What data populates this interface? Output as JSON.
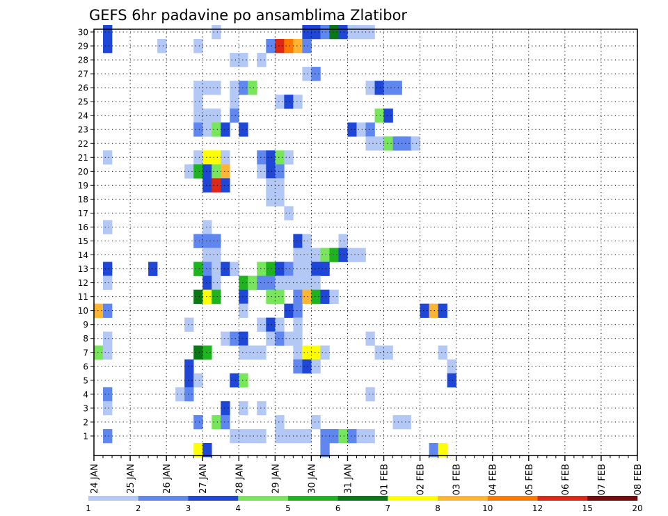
{
  "chart_data": {
    "type": "heatmap",
    "title": "GEFS 6hr padavine po ansamblima Zlatibor",
    "xlabel": "",
    "ylabel": "",
    "x_ticks": [
      "24 JAN",
      "25 JAN",
      "26 JAN",
      "27 JAN",
      "28 JAN",
      "29 JAN",
      "30 JAN",
      "31 JAN",
      "01 FEB",
      "02 FEB",
      "03 FEB",
      "04 FEB",
      "05 FEB",
      "06 FEB",
      "07 FEB",
      "08 FEB"
    ],
    "y_ticks": [
      1,
      2,
      3,
      4,
      5,
      6,
      7,
      8,
      9,
      10,
      11,
      12,
      13,
      14,
      15,
      16,
      17,
      18,
      19,
      20,
      21,
      22,
      23,
      24,
      25,
      26,
      27,
      28,
      29,
      30
    ],
    "xlim": [
      "24 JAN",
      "08 FEB"
    ],
    "ylim": [
      0,
      30
    ],
    "grid": true,
    "colorbar": {
      "labels": [
        "1",
        "2",
        "3",
        "4",
        "5",
        "6",
        "7",
        "8",
        "10",
        "12",
        "15",
        "20"
      ],
      "colors": [
        "#b4c8f5",
        "#5f87ef",
        "#1e46d7",
        "#78e65a",
        "#1eb41e",
        "#0a7814",
        "#ffff00",
        "#ffb432",
        "#ff7800",
        "#dc2814",
        "#780a0a"
      ]
    },
    "cells_note": "each cell = [member, time step index (6-hourly from 24 JAN 00Z), category index into colorbar.colors]",
    "cells": [
      [
        30,
        1,
        2
      ],
      [
        30,
        13,
        0
      ],
      [
        30,
        23,
        2
      ],
      [
        30,
        24,
        2
      ],
      [
        30,
        25,
        1
      ],
      [
        30,
        26,
        5
      ],
      [
        30,
        27,
        2
      ],
      [
        30,
        28,
        0
      ],
      [
        30,
        29,
        0
      ],
      [
        30,
        30,
        0
      ],
      [
        29,
        1,
        2
      ],
      [
        29,
        11,
        0
      ],
      [
        29,
        7,
        0
      ],
      [
        29,
        19,
        1
      ],
      [
        29,
        20,
        9
      ],
      [
        29,
        21,
        8
      ],
      [
        29,
        22,
        7
      ],
      [
        29,
        23,
        1
      ],
      [
        28,
        15,
        0
      ],
      [
        28,
        16,
        0
      ],
      [
        28,
        18,
        0
      ],
      [
        27,
        23,
        0
      ],
      [
        27,
        24,
        1
      ],
      [
        26,
        11,
        0
      ],
      [
        26,
        12,
        0
      ],
      [
        26,
        13,
        0
      ],
      [
        26,
        15,
        0
      ],
      [
        26,
        16,
        1
      ],
      [
        26,
        17,
        3
      ],
      [
        26,
        30,
        0
      ],
      [
        26,
        31,
        2
      ],
      [
        26,
        32,
        1
      ],
      [
        26,
        33,
        1
      ],
      [
        25,
        11,
        0
      ],
      [
        25,
        15,
        0
      ],
      [
        25,
        20,
        0
      ],
      [
        25,
        21,
        2
      ],
      [
        25,
        22,
        0
      ],
      [
        24,
        11,
        0
      ],
      [
        24,
        12,
        0
      ],
      [
        24,
        13,
        0
      ],
      [
        24,
        15,
        1
      ],
      [
        24,
        31,
        3
      ],
      [
        24,
        32,
        2
      ],
      [
        23,
        11,
        1
      ],
      [
        23,
        12,
        0
      ],
      [
        23,
        13,
        3
      ],
      [
        23,
        14,
        2
      ],
      [
        23,
        16,
        2
      ],
      [
        23,
        28,
        2
      ],
      [
        23,
        29,
        0
      ],
      [
        23,
        30,
        1
      ],
      [
        22,
        30,
        0
      ],
      [
        22,
        31,
        0
      ],
      [
        22,
        32,
        3
      ],
      [
        22,
        33,
        1
      ],
      [
        22,
        34,
        1
      ],
      [
        22,
        35,
        0
      ],
      [
        21,
        1,
        0
      ],
      [
        21,
        11,
        0
      ],
      [
        21,
        12,
        6
      ],
      [
        21,
        13,
        6
      ],
      [
        21,
        14,
        0
      ],
      [
        21,
        18,
        1
      ],
      [
        21,
        19,
        2
      ],
      [
        21,
        20,
        3
      ],
      [
        21,
        21,
        0
      ],
      [
        20,
        10,
        0
      ],
      [
        20,
        11,
        4
      ],
      [
        20,
        12,
        2
      ],
      [
        20,
        13,
        3
      ],
      [
        20,
        14,
        7
      ],
      [
        20,
        18,
        0
      ],
      [
        20,
        19,
        2
      ],
      [
        20,
        20,
        1
      ],
      [
        19,
        12,
        2
      ],
      [
        19,
        13,
        9
      ],
      [
        19,
        14,
        2
      ],
      [
        19,
        19,
        0
      ],
      [
        19,
        20,
        0
      ],
      [
        18,
        19,
        0
      ],
      [
        18,
        20,
        0
      ],
      [
        17,
        21,
        0
      ],
      [
        16,
        1,
        0
      ],
      [
        16,
        12,
        0
      ],
      [
        15,
        11,
        1
      ],
      [
        15,
        12,
        1
      ],
      [
        15,
        13,
        1
      ],
      [
        15,
        22,
        2
      ],
      [
        15,
        23,
        0
      ],
      [
        15,
        27,
        0
      ],
      [
        14,
        12,
        0
      ],
      [
        14,
        13,
        0
      ],
      [
        14,
        22,
        0
      ],
      [
        14,
        23,
        0
      ],
      [
        14,
        24,
        0
      ],
      [
        14,
        25,
        3
      ],
      [
        14,
        26,
        4
      ],
      [
        14,
        27,
        2
      ],
      [
        14,
        28,
        0
      ],
      [
        14,
        29,
        0
      ],
      [
        13,
        1,
        2
      ],
      [
        13,
        6,
        2
      ],
      [
        13,
        11,
        4
      ],
      [
        13,
        12,
        1
      ],
      [
        13,
        13,
        0
      ],
      [
        13,
        14,
        2
      ],
      [
        13,
        15,
        0
      ],
      [
        13,
        18,
        3
      ],
      [
        13,
        19,
        4
      ],
      [
        13,
        20,
        2
      ],
      [
        13,
        21,
        1
      ],
      [
        13,
        22,
        0
      ],
      [
        13,
        23,
        0
      ],
      [
        13,
        24,
        2
      ],
      [
        13,
        25,
        2
      ],
      [
        12,
        1,
        0
      ],
      [
        12,
        12,
        2
      ],
      [
        12,
        13,
        0
      ],
      [
        12,
        16,
        4
      ],
      [
        12,
        17,
        3
      ],
      [
        12,
        18,
        1
      ],
      [
        12,
        19,
        1
      ],
      [
        12,
        20,
        0
      ],
      [
        12,
        21,
        0
      ],
      [
        12,
        22,
        0
      ],
      [
        12,
        23,
        0
      ],
      [
        12,
        24,
        0
      ],
      [
        11,
        11,
        5
      ],
      [
        11,
        12,
        6
      ],
      [
        11,
        13,
        4
      ],
      [
        11,
        16,
        2
      ],
      [
        11,
        19,
        3
      ],
      [
        11,
        20,
        3
      ],
      [
        11,
        22,
        1
      ],
      [
        11,
        23,
        7
      ],
      [
        11,
        24,
        4
      ],
      [
        11,
        25,
        2
      ],
      [
        11,
        26,
        0
      ],
      [
        10,
        0,
        7
      ],
      [
        10,
        1,
        1
      ],
      [
        10,
        16,
        0
      ],
      [
        10,
        21,
        2
      ],
      [
        10,
        22,
        1
      ],
      [
        10,
        36,
        2
      ],
      [
        10,
        37,
        7
      ],
      [
        10,
        38,
        2
      ],
      [
        9,
        10,
        0
      ],
      [
        9,
        18,
        0
      ],
      [
        9,
        19,
        2
      ],
      [
        9,
        20,
        0
      ],
      [
        9,
        22,
        0
      ],
      [
        8,
        1,
        0
      ],
      [
        8,
        14,
        0
      ],
      [
        8,
        15,
        1
      ],
      [
        8,
        16,
        2
      ],
      [
        8,
        19,
        0
      ],
      [
        8,
        20,
        1
      ],
      [
        8,
        21,
        0
      ],
      [
        8,
        22,
        0
      ],
      [
        8,
        30,
        0
      ],
      [
        7,
        0,
        3
      ],
      [
        7,
        1,
        0
      ],
      [
        7,
        11,
        5
      ],
      [
        7,
        12,
        4
      ],
      [
        7,
        16,
        0
      ],
      [
        7,
        17,
        0
      ],
      [
        7,
        18,
        0
      ],
      [
        7,
        22,
        0
      ],
      [
        7,
        23,
        6
      ],
      [
        7,
        24,
        6
      ],
      [
        7,
        25,
        0
      ],
      [
        7,
        31,
        0
      ],
      [
        7,
        32,
        0
      ],
      [
        7,
        38,
        0
      ],
      [
        6,
        10,
        2
      ],
      [
        6,
        22,
        1
      ],
      [
        6,
        23,
        2
      ],
      [
        6,
        24,
        0
      ],
      [
        6,
        39,
        0
      ],
      [
        5,
        10,
        2
      ],
      [
        5,
        11,
        0
      ],
      [
        5,
        15,
        2
      ],
      [
        5,
        16,
        3
      ],
      [
        5,
        39,
        2
      ],
      [
        4,
        1,
        1
      ],
      [
        4,
        9,
        0
      ],
      [
        4,
        10,
        1
      ],
      [
        4,
        30,
        0
      ],
      [
        3,
        1,
        0
      ],
      [
        3,
        14,
        2
      ],
      [
        3,
        16,
        0
      ],
      [
        3,
        18,
        0
      ],
      [
        2,
        11,
        1
      ],
      [
        2,
        13,
        3
      ],
      [
        2,
        14,
        1
      ],
      [
        2,
        20,
        0
      ],
      [
        2,
        24,
        0
      ],
      [
        2,
        33,
        0
      ],
      [
        2,
        34,
        0
      ],
      [
        1,
        1,
        1
      ],
      [
        1,
        15,
        0
      ],
      [
        1,
        16,
        0
      ],
      [
        1,
        17,
        0
      ],
      [
        1,
        18,
        0
      ],
      [
        1,
        20,
        0
      ],
      [
        1,
        21,
        0
      ],
      [
        1,
        22,
        0
      ],
      [
        1,
        23,
        0
      ],
      [
        1,
        25,
        1
      ],
      [
        1,
        26,
        1
      ],
      [
        1,
        27,
        3
      ],
      [
        1,
        28,
        1
      ],
      [
        1,
        29,
        0
      ],
      [
        1,
        30,
        0
      ],
      [
        0,
        11,
        6
      ],
      [
        0,
        12,
        2
      ],
      [
        0,
        25,
        1
      ],
      [
        0,
        37,
        1
      ],
      [
        0,
        38,
        6
      ]
    ]
  }
}
